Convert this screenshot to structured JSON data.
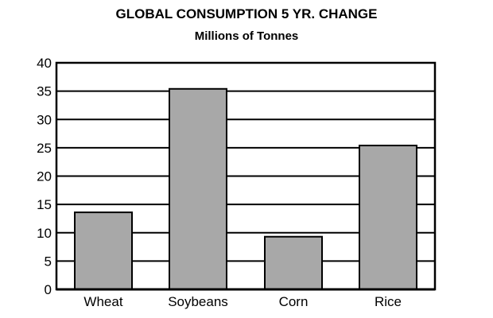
{
  "chart_data": {
    "type": "bar",
    "title": "GLOBAL CONSUMPTION 5 YR. CHANGE",
    "subtitle": "Millions of Tonnes",
    "xlabel": "",
    "ylabel": "",
    "categories": [
      "Wheat",
      "Soybeans",
      "Corn",
      "Rice"
    ],
    "values": [
      13.6,
      35.4,
      9.3,
      25.4
    ],
    "ylim": [
      0,
      40
    ],
    "yticks": [
      0,
      5,
      10,
      15,
      20,
      25,
      30,
      35,
      40
    ],
    "grid": true,
    "bar_color": "#a8a8a8",
    "edge_color": "#000000"
  }
}
